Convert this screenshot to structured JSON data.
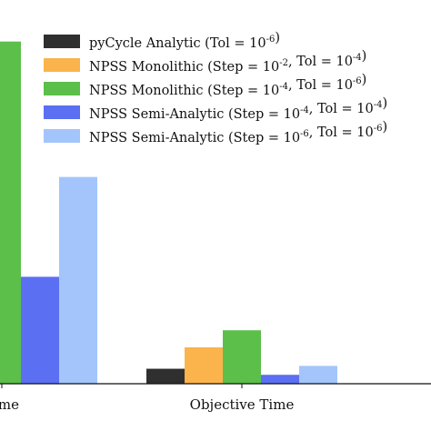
{
  "chart_data": {
    "type": "bar",
    "title": "",
    "xlabel": "",
    "ylabel": "",
    "categories": [
      "Time",
      "Objective Time"
    ],
    "ylim": [
      0,
      100
    ],
    "grid": false,
    "legend_position": "top-right",
    "series": [
      {
        "name": "pyCycle Analytic (Tol = 10-6)",
        "color": "#2f2f2f",
        "values": [
          null,
          4.2
        ]
      },
      {
        "name": "NPSS Monolithic (Step = 10-2, Tol = 10-4)",
        "color": "#fbb34c",
        "values": [
          null,
          10.2
        ]
      },
      {
        "name": "NPSS Monolithic (Step = 10-4, Tol = 10-6)",
        "color": "#5bbf4a",
        "values": [
          96.0,
          15.0
        ]
      },
      {
        "name": "NPSS Semi-Analytic (Step = 10-4, Tol = 10-4)",
        "color": "#5b6ff2",
        "values": [
          30.0,
          2.5
        ]
      },
      {
        "name": "NPSS Semi-Analytic (Step = 10-6, Tol = 10-6)",
        "color": "#a3c5fb",
        "values": [
          58.0,
          5.0
        ]
      }
    ]
  },
  "legend_entries": [
    {
      "pre": "pyCycle Analytic (Tol = 10",
      "sup1": "-6",
      "mid": ")",
      "sup2": "",
      "post": ""
    },
    {
      "pre": "NPSS Monolithic (Step = 10",
      "sup1": "-2",
      "mid": ", Tol = 10",
      "sup2": "-4",
      "post": ")"
    },
    {
      "pre": "NPSS Monolithic (Step = 10",
      "sup1": "-4",
      "mid": ", Tol = 10",
      "sup2": "-6",
      "post": ")"
    },
    {
      "pre": "NPSS Semi-Analytic (Step = 10",
      "sup1": "-4",
      "mid": ", Tol = 10",
      "sup2": "-4",
      "post": ")"
    },
    {
      "pre": "NPSS Semi-Analytic (Step = 10",
      "sup1": "-6",
      "mid": ", Tol = 10",
      "sup2": "-6",
      "post": ")"
    }
  ]
}
